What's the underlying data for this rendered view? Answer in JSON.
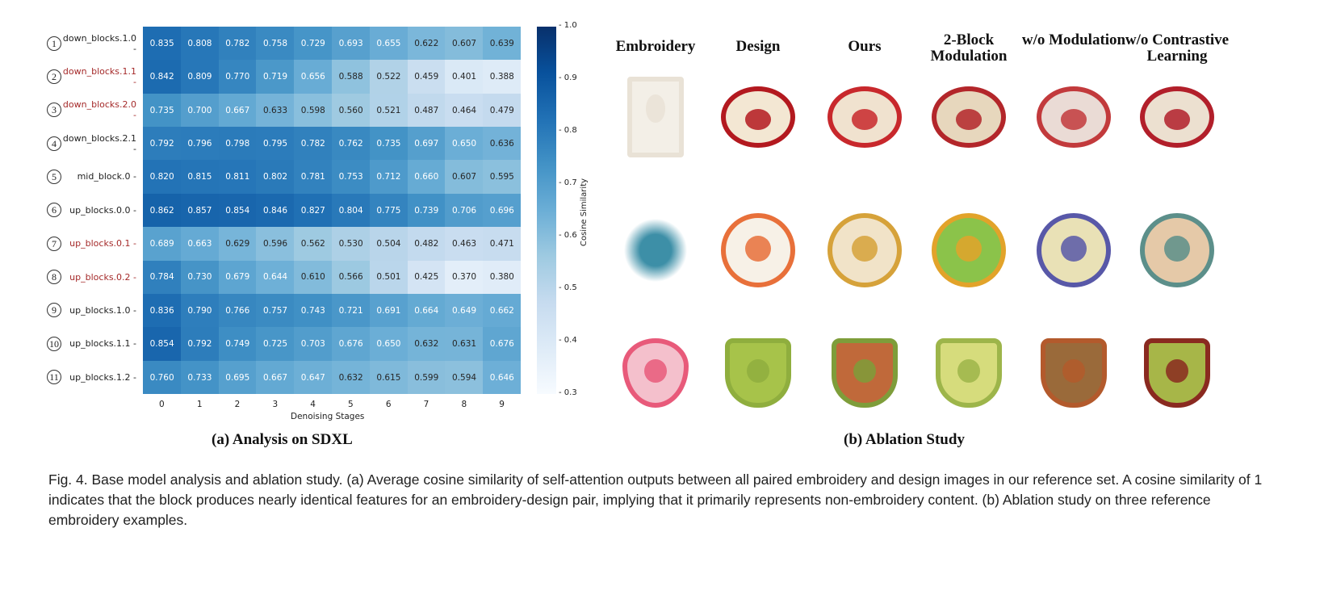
{
  "chart_data": {
    "type": "heatmap",
    "xlabel": "Denoising Stages",
    "colorbar_label": "Cosine Similarity",
    "colormap": "Blues",
    "vlim": [
      0.3,
      1.0
    ],
    "colorbar_ticks": [
      "1.0",
      "0.9",
      "0.8",
      "0.7",
      "0.6",
      "0.5",
      "0.4",
      "0.3"
    ],
    "x": [
      "0",
      "1",
      "2",
      "3",
      "4",
      "5",
      "6",
      "7",
      "8",
      "9"
    ],
    "rows": [
      {
        "index": "1",
        "label": "down_blocks.1.0",
        "highlight": false,
        "values": [
          0.835,
          0.808,
          0.782,
          0.758,
          0.729,
          0.693,
          0.655,
          0.622,
          0.607,
          0.639
        ]
      },
      {
        "index": "2",
        "label": "down_blocks.1.1",
        "highlight": true,
        "values": [
          0.842,
          0.809,
          0.77,
          0.719,
          0.656,
          0.588,
          0.522,
          0.459,
          0.401,
          0.388
        ]
      },
      {
        "index": "3",
        "label": "down_blocks.2.0",
        "highlight": true,
        "values": [
          0.735,
          0.7,
          0.667,
          0.633,
          0.598,
          0.56,
          0.521,
          0.487,
          0.464,
          0.479
        ]
      },
      {
        "index": "4",
        "label": "down_blocks.2.1",
        "highlight": false,
        "values": [
          0.792,
          0.796,
          0.798,
          0.795,
          0.782,
          0.762,
          0.735,
          0.697,
          0.65,
          0.636
        ]
      },
      {
        "index": "5",
        "label": "mid_block.0",
        "highlight": false,
        "values": [
          0.82,
          0.815,
          0.811,
          0.802,
          0.781,
          0.753,
          0.712,
          0.66,
          0.607,
          0.595
        ]
      },
      {
        "index": "6",
        "label": "up_blocks.0.0",
        "highlight": false,
        "values": [
          0.862,
          0.857,
          0.854,
          0.846,
          0.827,
          0.804,
          0.775,
          0.739,
          0.706,
          0.696
        ]
      },
      {
        "index": "7",
        "label": "up_blocks.0.1",
        "highlight": true,
        "values": [
          0.689,
          0.663,
          0.629,
          0.596,
          0.562,
          0.53,
          0.504,
          0.482,
          0.463,
          0.471
        ]
      },
      {
        "index": "8",
        "label": "up_blocks.0.2",
        "highlight": true,
        "values": [
          0.784,
          0.73,
          0.679,
          0.644,
          0.61,
          0.566,
          0.501,
          0.425,
          0.37,
          0.38
        ]
      },
      {
        "index": "9",
        "label": "up_blocks.1.0",
        "highlight": false,
        "values": [
          0.836,
          0.79,
          0.766,
          0.757,
          0.743,
          0.721,
          0.691,
          0.664,
          0.649,
          0.662
        ]
      },
      {
        "index": "10",
        "label": "up_blocks.1.1",
        "highlight": false,
        "values": [
          0.854,
          0.792,
          0.749,
          0.725,
          0.703,
          0.676,
          0.65,
          0.632,
          0.631,
          0.676
        ]
      },
      {
        "index": "11",
        "label": "up_blocks.1.2",
        "highlight": false,
        "values": [
          0.76,
          0.733,
          0.695,
          0.667,
          0.647,
          0.632,
          0.615,
          0.599,
          0.594,
          0.646
        ]
      }
    ],
    "highlight_color": "#a52a2a"
  },
  "panel_a_title": "(a) Analysis on SDXL",
  "panel_b_title": "(b) Ablation Study",
  "ablation": {
    "columns": [
      "Embroidery",
      "Design",
      "Ours",
      "2-Block Modulation",
      "w/o Modulation",
      "w/o Contrastive Learning"
    ],
    "rows": [
      {
        "colors": [
          "#e9e2d6",
          "#b3191f",
          "#c8282c",
          "#b3262a",
          "#c23a3c",
          "#b21f2a"
        ],
        "bg": [
          "#f3efe7",
          "#f3e7d3",
          "#f0e2cf",
          "#e7d7bd",
          "#eadbd5",
          "#ece0d0"
        ]
      },
      {
        "colors": [
          "#3d8fa7",
          "#e8703a",
          "#d6a23a",
          "#e2a32a",
          "#5858a8",
          "#5c8f8a"
        ],
        "bg": [
          "#ffffff",
          "#f7f1e7",
          "#f1e3c8",
          "#8bc34a",
          "#e9e1b6",
          "#e5c9a8"
        ]
      },
      {
        "colors": [
          "#e85a7a",
          "#8fae3e",
          "#7e9d3a",
          "#9db54a",
          "#b35a2c",
          "#8a2a20"
        ],
        "bg": [
          "#f4c0cc",
          "#a7c34a",
          "#c0693a",
          "#d6dc7c",
          "#9a6a3a",
          "#a7b648"
        ]
      }
    ]
  },
  "caption": "Fig. 4.  Base model analysis and ablation study. (a) Average cosine similarity of self-attention outputs between all paired embroidery and design images in our reference set. A cosine similarity of 1 indicates that the block produces nearly identical features for an embroidery-design pair, implying that it primarily represents non-embroidery content. (b) Ablation study on three reference embroidery examples."
}
